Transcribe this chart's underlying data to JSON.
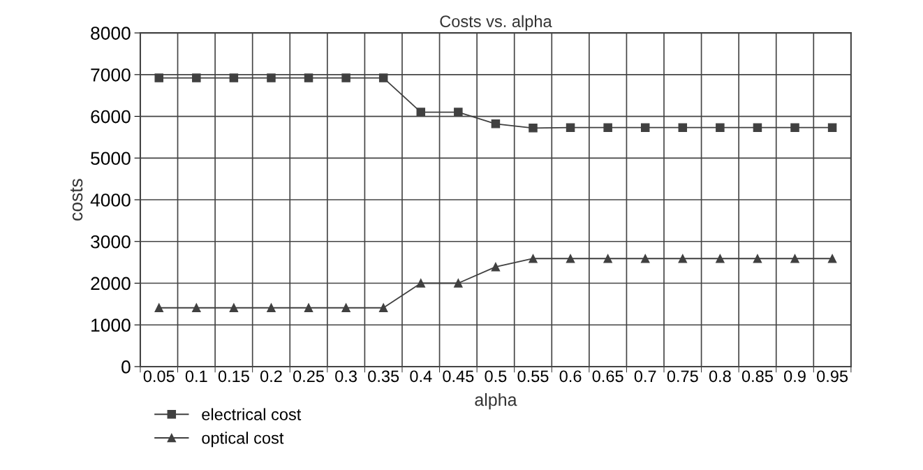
{
  "chart_data": {
    "type": "line",
    "title": "Costs vs. alpha",
    "xlabel": "alpha",
    "ylabel": "costs",
    "categories": [
      "0.05",
      "0.1",
      "0.15",
      "0.2",
      "0.25",
      "0.3",
      "0.35",
      "0.4",
      "0.45",
      "0.5",
      "0.55",
      "0.6",
      "0.65",
      "0.7",
      "0.75",
      "0.8",
      "0.85",
      "0.9",
      "0.95"
    ],
    "series": [
      {
        "name": "electrical cost",
        "color": "#404040",
        "marker": "square",
        "values": [
          6920,
          6920,
          6920,
          6920,
          6920,
          6920,
          6920,
          6100,
          6100,
          5820,
          5720,
          5730,
          5730,
          5730,
          5730,
          5730,
          5730,
          5730,
          5730
        ]
      },
      {
        "name": "optical cost",
        "color": "#404040",
        "marker": "triangle",
        "values": [
          1410,
          1410,
          1410,
          1410,
          1410,
          1410,
          1410,
          2000,
          2000,
          2390,
          2590,
          2590,
          2590,
          2590,
          2590,
          2590,
          2590,
          2590,
          2590
        ]
      }
    ],
    "ylim": [
      0,
      8000
    ],
    "yticks": [
      0,
      1000,
      2000,
      3000,
      4000,
      5000,
      6000,
      7000,
      8000
    ],
    "grid": true,
    "legend": "bottom left",
    "line_style": "solid"
  }
}
